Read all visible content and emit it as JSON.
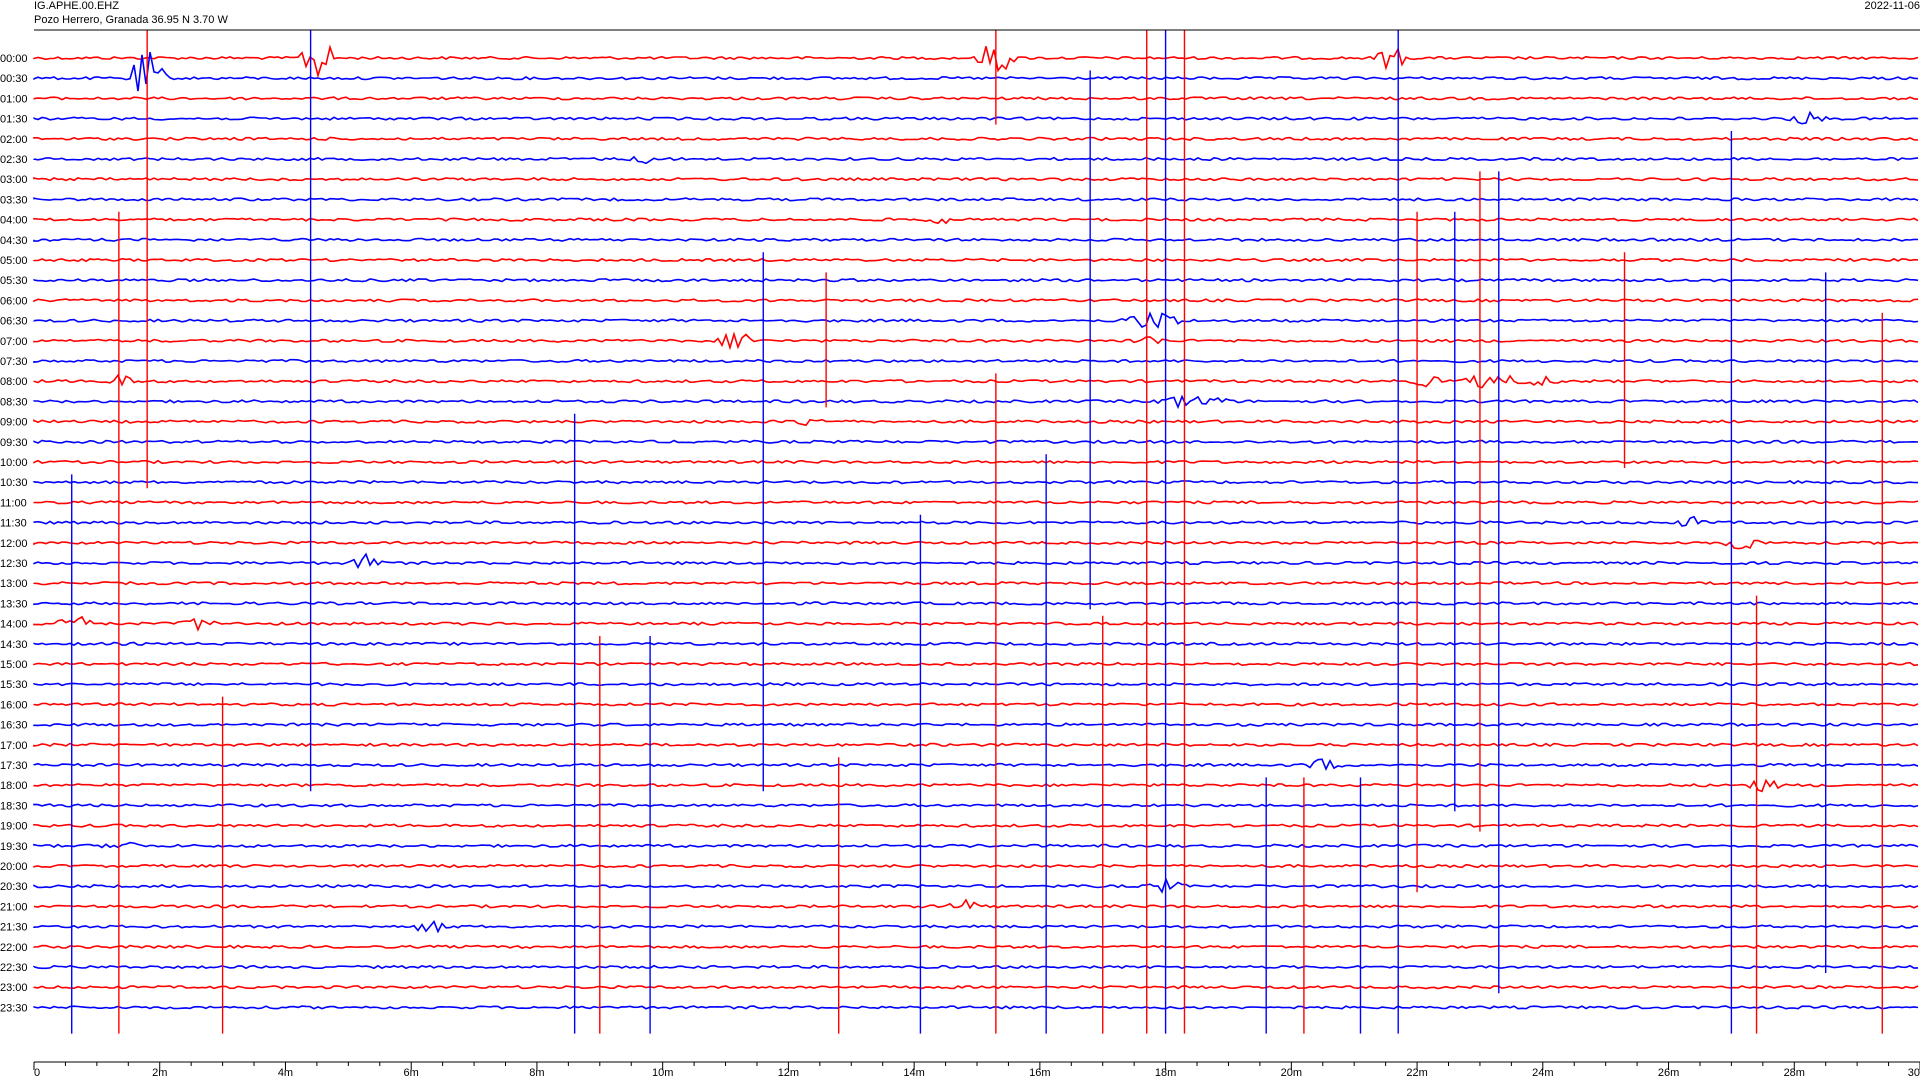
{
  "header": {
    "station": "IG.APHE.00.EHZ",
    "location": "Pozo Herrero, Granada  36.95 N 3.70 W",
    "date": "2022-11-06"
  },
  "colors": {
    "odd": "#ff0000",
    "even": "#0000ff",
    "axis": "#000000"
  },
  "chart_data": {
    "type": "line",
    "title": "",
    "xlabel": "",
    "ylabel": "",
    "x_ticks": [
      "0",
      "2m",
      "4m",
      "6m",
      "8m",
      "10m",
      "12m",
      "14m",
      "16m",
      "18m",
      "20m",
      "22m",
      "24m",
      "26m",
      "28m",
      "30"
    ],
    "xlim_minutes": [
      0,
      30
    ],
    "row_labels": [
      "00:00",
      "00:30",
      "01:00",
      "01:30",
      "02:00",
      "02:30",
      "03:00",
      "03:30",
      "04:00",
      "04:30",
      "05:00",
      "05:30",
      "06:00",
      "06:30",
      "07:00",
      "07:30",
      "08:00",
      "08:30",
      "09:00",
      "09:30",
      "10:00",
      "10:30",
      "11:00",
      "11:30",
      "12:00",
      "12:30",
      "13:00",
      "13:30",
      "14:00",
      "14:30",
      "15:00",
      "15:30",
      "16:00",
      "16:30",
      "17:00",
      "17:30",
      "18:00",
      "18:30",
      "19:00",
      "19:30",
      "20:00",
      "20:30",
      "21:00",
      "21:30",
      "22:00",
      "22:30",
      "23:00",
      "23:30"
    ],
    "events": [
      {
        "row": 0,
        "minute": 21.6,
        "amp": 1.2
      },
      {
        "row": 0,
        "minute": 15.3,
        "amp": 2.0
      },
      {
        "row": 0,
        "minute": 4.5,
        "amp": 2.5
      },
      {
        "row": 1,
        "minute": 1.8,
        "amp": 3.0
      },
      {
        "row": 3,
        "minute": 28.2,
        "amp": 0.6
      },
      {
        "row": 5,
        "minute": 9.8,
        "amp": 0.5
      },
      {
        "row": 8,
        "minute": 14.5,
        "amp": 0.4
      },
      {
        "row": 13,
        "minute": 17.6,
        "amp": 0.8
      },
      {
        "row": 13,
        "minute": 18.0,
        "amp": 0.9
      },
      {
        "row": 14,
        "minute": 11.2,
        "amp": 1.3
      },
      {
        "row": 14,
        "minute": 17.7,
        "amp": 0.5
      },
      {
        "row": 16,
        "minute": 1.4,
        "amp": 0.6
      },
      {
        "row": 16,
        "minute": 22.2,
        "amp": 0.5
      },
      {
        "row": 16,
        "minute": 23.0,
        "amp": 0.6
      },
      {
        "row": 16,
        "minute": 23.5,
        "amp": 0.5
      },
      {
        "row": 16,
        "minute": 24.0,
        "amp": 0.5
      },
      {
        "row": 17,
        "minute": 18.2,
        "amp": 0.7
      },
      {
        "row": 17,
        "minute": 18.7,
        "amp": 0.6
      },
      {
        "row": 18,
        "minute": 12.3,
        "amp": 0.4
      },
      {
        "row": 23,
        "minute": 26.4,
        "amp": 0.5
      },
      {
        "row": 24,
        "minute": 27.2,
        "amp": 0.8
      },
      {
        "row": 25,
        "minute": 5.3,
        "amp": 0.8
      },
      {
        "row": 28,
        "minute": 0.6,
        "amp": 1.2
      },
      {
        "row": 28,
        "minute": 2.6,
        "amp": 0.6
      },
      {
        "row": 35,
        "minute": 20.5,
        "amp": 0.6
      },
      {
        "row": 36,
        "minute": 27.5,
        "amp": 0.6
      },
      {
        "row": 39,
        "minute": 1.4,
        "amp": 0.5
      },
      {
        "row": 41,
        "minute": 18.0,
        "amp": 0.6
      },
      {
        "row": 42,
        "minute": 14.8,
        "amp": 0.7
      },
      {
        "row": 43,
        "minute": 6.3,
        "amp": 0.6
      }
    ],
    "spikes": [
      {
        "minute": 1.8,
        "from_row": 0,
        "to_row": 21
      },
      {
        "minute": 4.4,
        "from_row": 0,
        "to_row": 36
      },
      {
        "minute": 15.3,
        "from_row": 0,
        "to_row": 3
      },
      {
        "minute": 21.7,
        "from_row": 0,
        "to_row": 48
      },
      {
        "minute": 1.35,
        "from_row": 9,
        "to_row": 48
      },
      {
        "minute": 11.6,
        "from_row": 11,
        "to_row": 36
      },
      {
        "minute": 12.6,
        "from_row": 12,
        "to_row": 17
      },
      {
        "minute": 16.8,
        "from_row": 2,
        "to_row": 27
      },
      {
        "minute": 17.7,
        "from_row": 0,
        "to_row": 48
      },
      {
        "minute": 18.0,
        "from_row": 0,
        "to_row": 48
      },
      {
        "minute": 18.3,
        "from_row": 0,
        "to_row": 48
      },
      {
        "minute": 0.6,
        "from_row": 22,
        "to_row": 48
      },
      {
        "minute": 3.0,
        "from_row": 33,
        "to_row": 48
      },
      {
        "minute": 8.6,
        "from_row": 19,
        "to_row": 48
      },
      {
        "minute": 9.0,
        "from_row": 30,
        "to_row": 48
      },
      {
        "minute": 9.8,
        "from_row": 30,
        "to_row": 48
      },
      {
        "minute": 12.8,
        "from_row": 36,
        "to_row": 48
      },
      {
        "minute": 14.1,
        "from_row": 24,
        "to_row": 48
      },
      {
        "minute": 15.3,
        "from_row": 17,
        "to_row": 48
      },
      {
        "minute": 16.1,
        "from_row": 21,
        "to_row": 48
      },
      {
        "minute": 17.0,
        "from_row": 29,
        "to_row": 48
      },
      {
        "minute": 19.6,
        "from_row": 37,
        "to_row": 48
      },
      {
        "minute": 20.2,
        "from_row": 37,
        "to_row": 48
      },
      {
        "minute": 21.1,
        "from_row": 37,
        "to_row": 48
      },
      {
        "minute": 22.0,
        "from_row": 9,
        "to_row": 41
      },
      {
        "minute": 22.6,
        "from_row": 9,
        "to_row": 37
      },
      {
        "minute": 23.0,
        "from_row": 7,
        "to_row": 38
      },
      {
        "minute": 23.3,
        "from_row": 7,
        "to_row": 46
      },
      {
        "minute": 25.3,
        "from_row": 11,
        "to_row": 20
      },
      {
        "minute": 27.0,
        "from_row": 5,
        "to_row": 48
      },
      {
        "minute": 27.4,
        "from_row": 28,
        "to_row": 48
      },
      {
        "minute": 28.5,
        "from_row": 12,
        "to_row": 45
      },
      {
        "minute": 29.4,
        "from_row": 14,
        "to_row": 48
      }
    ]
  }
}
